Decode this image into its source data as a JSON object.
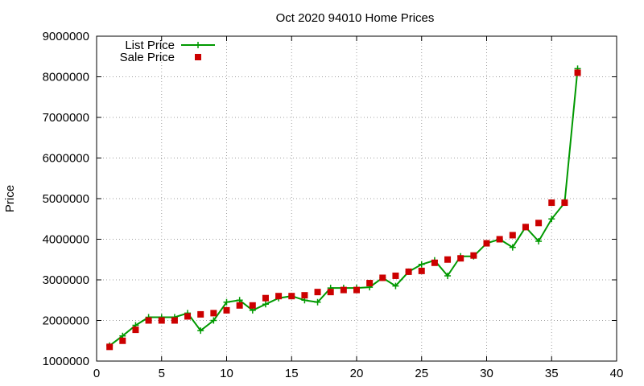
{
  "chart_data": {
    "type": "line",
    "title": "Oct 2020 94010 Home Prices",
    "xlabel": "",
    "ylabel": "Price",
    "xlim": [
      0,
      40
    ],
    "ylim": [
      1000000,
      9000000
    ],
    "xticks": [
      0,
      5,
      10,
      15,
      20,
      25,
      30,
      35,
      40
    ],
    "yticks": [
      1000000,
      2000000,
      3000000,
      4000000,
      5000000,
      6000000,
      7000000,
      8000000,
      9000000
    ],
    "grid": true,
    "legend_position": "top-left",
    "series": [
      {
        "name": "List Price",
        "style": "linespoints",
        "marker": "plus",
        "color": "#009900",
        "x": [
          1,
          2,
          3,
          4,
          5,
          6,
          7,
          8,
          9,
          10,
          11,
          12,
          13,
          14,
          15,
          16,
          17,
          18,
          19,
          20,
          21,
          22,
          23,
          24,
          25,
          26,
          27,
          28,
          29,
          30,
          31,
          32,
          33,
          34,
          35,
          36,
          37
        ],
        "values": [
          1380000,
          1620000,
          1880000,
          2080000,
          2080000,
          2080000,
          2180000,
          1750000,
          2000000,
          2450000,
          2500000,
          2250000,
          2400000,
          2550000,
          2600000,
          2500000,
          2450000,
          2800000,
          2800000,
          2800000,
          2820000,
          3050000,
          2850000,
          3200000,
          3380000,
          3480000,
          3100000,
          3580000,
          3580000,
          3900000,
          4000000,
          3800000,
          4300000,
          3950000,
          4500000,
          4900000,
          8200000
        ]
      },
      {
        "name": "Sale Price",
        "style": "points",
        "marker": "square",
        "color": "#cc0000",
        "x": [
          1,
          2,
          3,
          4,
          5,
          6,
          7,
          8,
          9,
          10,
          11,
          12,
          13,
          14,
          15,
          16,
          17,
          18,
          19,
          20,
          21,
          22,
          23,
          24,
          25,
          26,
          27,
          28,
          29,
          30,
          31,
          32,
          33,
          34,
          35,
          36,
          37
        ],
        "values": [
          1350000,
          1500000,
          1770000,
          2000000,
          2000000,
          2000000,
          2100000,
          2150000,
          2180000,
          2250000,
          2370000,
          2370000,
          2550000,
          2600000,
          2600000,
          2620000,
          2700000,
          2700000,
          2750000,
          2750000,
          2920000,
          3050000,
          3100000,
          3200000,
          3220000,
          3420000,
          3500000,
          3530000,
          3600000,
          3900000,
          4000000,
          4100000,
          4300000,
          4400000,
          4900000,
          4900000,
          8100000
        ]
      }
    ]
  }
}
